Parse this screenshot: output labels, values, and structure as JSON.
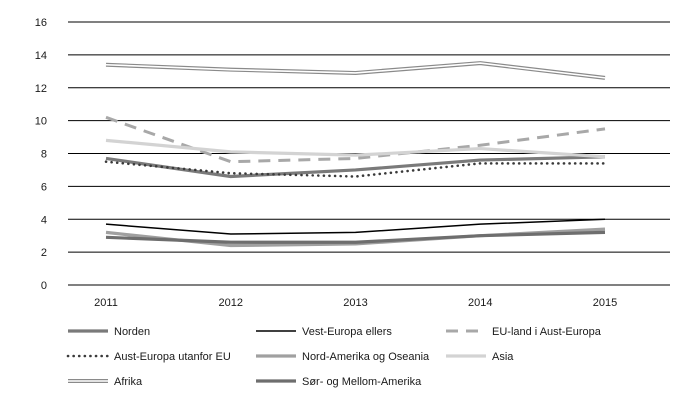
{
  "chart_data": {
    "type": "line",
    "title": "",
    "xlabel": "",
    "ylabel": "",
    "x": [
      "2011",
      "2012",
      "2013",
      "2014",
      "2015"
    ],
    "ylim": [
      0,
      16
    ],
    "yticks": [
      0,
      2,
      4,
      6,
      8,
      10,
      12,
      14,
      16
    ],
    "grid": "horizontal",
    "legend_position": "bottom",
    "series": [
      {
        "name": "Norden",
        "values": [
          7.7,
          6.6,
          7.0,
          7.6,
          7.8
        ],
        "color": "#7a7a7a",
        "style": "solid-thick"
      },
      {
        "name": "Vest-Europa ellers",
        "values": [
          3.7,
          3.1,
          3.2,
          3.7,
          4.0
        ],
        "color": "#000000",
        "style": "solid-thin"
      },
      {
        "name": "EU-land i Aust-Europa",
        "values": [
          10.2,
          7.5,
          7.7,
          8.5,
          9.5
        ],
        "color": "#a8a8a8",
        "style": "dashed"
      },
      {
        "name": "Aust-Europa utanfor EU",
        "values": [
          7.5,
          6.8,
          6.6,
          7.4,
          7.4
        ],
        "color": "#3a3a3a",
        "style": "dotted"
      },
      {
        "name": "Nord-Amerika og Oseania",
        "values": [
          3.2,
          2.4,
          2.5,
          3.0,
          3.4
        ],
        "color": "#a0a0a0",
        "style": "solid-thick"
      },
      {
        "name": "Asia",
        "values": [
          8.8,
          8.1,
          7.9,
          8.3,
          7.8
        ],
        "color": "#d3d3d3",
        "style": "solid-thick"
      },
      {
        "name": "Afrika",
        "values": [
          13.4,
          13.1,
          12.9,
          13.5,
          12.6
        ],
        "color": "#8a8a8a",
        "style": "double"
      },
      {
        "name": "Sør- og Mellom-Amerika",
        "values": [
          2.9,
          2.6,
          2.6,
          3.0,
          3.2
        ],
        "color": "#6e6e6e",
        "style": "solid-thick"
      }
    ]
  }
}
